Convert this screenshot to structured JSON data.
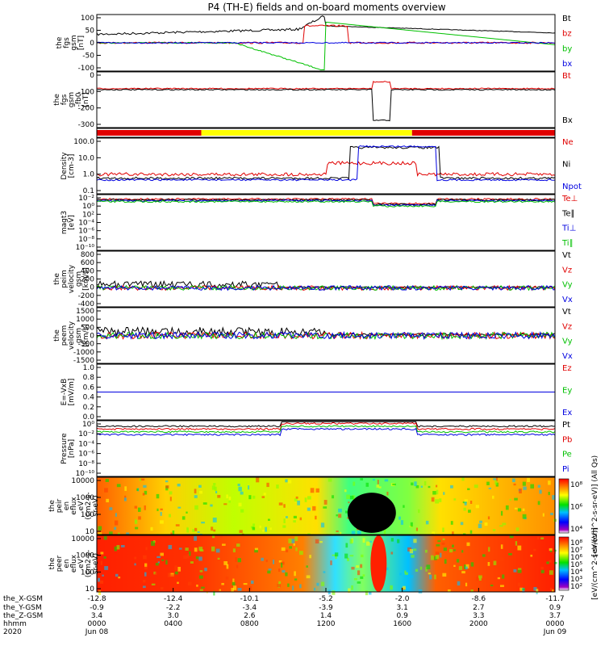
{
  "title": "P4 (TH-E) fields and on-board moments overview",
  "colors": {
    "black": "#000000",
    "red": "#e00000",
    "green": "#00c000",
    "blue": "#0000e0",
    "yellow": "#ffff00"
  },
  "chart_data": [
    {
      "id": "fgs_bfield",
      "type": "line",
      "ylabel_lines": [
        "the",
        "fgs",
        "gsm",
        "[nT]"
      ],
      "yticks": [
        "100",
        "50",
        "0",
        "-50",
        "-100"
      ],
      "ylim": [
        -100,
        100
      ],
      "series": [
        {
          "name": "Bt",
          "color": "black"
        },
        {
          "name": "bz",
          "color": "red"
        },
        {
          "name": "by",
          "color": "green"
        },
        {
          "name": "bx",
          "color": "blue"
        }
      ]
    },
    {
      "id": "fgs_btotal",
      "type": "line",
      "ylabel_lines": [
        "the",
        "fgs",
        "gsm",
        "-fb0",
        "[nT]"
      ],
      "yticks": [
        "0",
        "-100",
        "-200",
        "-300"
      ],
      "ylim": [
        -330,
        30
      ],
      "series": [
        {
          "name": "Bt",
          "color": "red"
        },
        {
          "name": "Bx",
          "color": "black"
        }
      ]
    },
    {
      "id": "mode_bar",
      "type": "table",
      "ylabel_lines": [],
      "yticks": [],
      "segments": [
        {
          "from": 0,
          "to": 0.228,
          "color": "red"
        },
        {
          "from": 0.228,
          "to": 0.688,
          "color": "yellow"
        },
        {
          "from": 0.688,
          "to": 1,
          "color": "red"
        }
      ]
    },
    {
      "id": "density",
      "type": "line",
      "ylabel_lines": [
        "Density",
        "[cm-3]"
      ],
      "log": true,
      "yticks": [
        "100.0",
        "10.0",
        "1.0",
        "0.1"
      ],
      "series": [
        {
          "name": "Ne",
          "color": "red"
        },
        {
          "name": "Ni",
          "color": "black"
        },
        {
          "name": "Npot",
          "color": "blue"
        }
      ]
    },
    {
      "id": "temperature",
      "type": "line",
      "ylabel_lines": [
        "magt3",
        "[eV]"
      ],
      "log": true,
      "yticks": [
        "10⁻²",
        "10⁰",
        "10²",
        "10⁻⁴",
        "10⁻⁶",
        "10⁻⁸",
        "10⁻¹⁰"
      ],
      "series": [
        {
          "name": "Te⊥",
          "color": "red"
        },
        {
          "name": "Te∥",
          "color": "black"
        },
        {
          "name": "Ti⊥",
          "color": "blue"
        },
        {
          "name": "Ti∥",
          "color": "green"
        }
      ]
    },
    {
      "id": "peim_velocity",
      "type": "line",
      "ylabel_lines": [
        "the",
        "peim",
        "velocity",
        "gsm",
        "[km/s]"
      ],
      "yticks": [
        "800",
        "600",
        "400",
        "200",
        "0",
        "-200",
        "-400"
      ],
      "ylim": [
        -400,
        800
      ],
      "series": [
        {
          "name": "Vt",
          "color": "black"
        },
        {
          "name": "Vz",
          "color": "red"
        },
        {
          "name": "Vy",
          "color": "green"
        },
        {
          "name": "Vx",
          "color": "blue"
        }
      ]
    },
    {
      "id": "peem_velocity",
      "type": "line",
      "ylabel_lines": [
        "the",
        "peem",
        "velocity",
        "gsm",
        "[km/s]"
      ],
      "yticks": [
        "1500",
        "1000",
        "500",
        "0",
        "-500",
        "-1000",
        "-1500"
      ],
      "ylim": [
        -1500,
        1500
      ],
      "series": [
        {
          "name": "Vt",
          "color": "black"
        },
        {
          "name": "Vz",
          "color": "red"
        },
        {
          "name": "Vy",
          "color": "green"
        },
        {
          "name": "Vx",
          "color": "blue"
        }
      ]
    },
    {
      "id": "efield",
      "type": "line",
      "ylabel_lines": [
        "E=-VxB",
        "[mV/m]"
      ],
      "yticks": [
        "1.0",
        "0.8",
        "0.6",
        "0.4",
        "0.2",
        "0.0"
      ],
      "ylim": [
        0,
        1
      ],
      "series": [
        {
          "name": "Ez",
          "color": "red"
        },
        {
          "name": "Ey",
          "color": "green"
        },
        {
          "name": "Ex",
          "color": "blue"
        }
      ]
    },
    {
      "id": "pressure",
      "type": "line",
      "ylabel_lines": [
        "Pressure",
        "[nPa]"
      ],
      "log": true,
      "yticks": [
        "10⁰",
        "10⁻²",
        "10⁻⁴",
        "10⁻⁶",
        "10⁻⁸",
        "10⁻¹⁰"
      ],
      "series": [
        {
          "name": "Pt",
          "color": "black"
        },
        {
          "name": "Pb",
          "color": "red"
        },
        {
          "name": "Pe",
          "color": "green"
        },
        {
          "name": "Pi",
          "color": "blue"
        }
      ]
    },
    {
      "id": "peir_spectrogram",
      "type": "heatmap",
      "ylabel_lines": [
        "the",
        "peir",
        "en",
        "eflux",
        "eV",
        "(cm2-s-",
        "sr-eV)"
      ],
      "yticks": [
        "10000",
        "1000",
        "100",
        "10"
      ],
      "colorbar_ticks": [
        "10⁸",
        "10⁶",
        "10⁴"
      ],
      "colorbar_label": "[eV/(cm^2-s-sr-eV)] (All Qs)"
    },
    {
      "id": "peer_spectrogram",
      "type": "heatmap",
      "ylabel_lines": [
        "the",
        "peer",
        "en",
        "eflux",
        "eV",
        "(cm2-s-",
        "sr-eV)"
      ],
      "yticks": [
        "10000",
        "1000",
        "100",
        "10"
      ],
      "colorbar_ticks": [
        "10⁸",
        "10⁷",
        "10⁶",
        "10⁵",
        "10⁴",
        "10³",
        "10²"
      ],
      "colorbar_label": "[eV/(cm^2-s-sr-eV)]"
    }
  ],
  "x_axis": {
    "row_labels": [
      "the_X-GSM",
      "the_Y-GSM",
      "the_Z-GSM",
      "hhmm",
      "2020"
    ],
    "ticks": [
      {
        "x": "-12.8",
        "y": "-0.9",
        "z": "3.4",
        "hhmm": "0000",
        "date": "Jun 08"
      },
      {
        "x": "-12.4",
        "y": "-2.2",
        "z": "3.0",
        "hhmm": "0400",
        "date": ""
      },
      {
        "x": "-10.1",
        "y": "-3.4",
        "z": "2.6",
        "hhmm": "0800",
        "date": ""
      },
      {
        "x": "-5.2",
        "y": "-3.9",
        "z": "1.4",
        "hhmm": "1200",
        "date": ""
      },
      {
        "x": "-2.0",
        "y": "3.1",
        "z": "0.9",
        "hhmm": "1600",
        "date": ""
      },
      {
        "x": "-8.6",
        "y": "2.7",
        "z": "3.3",
        "hhmm": "2000",
        "date": ""
      },
      {
        "x": "-11.7",
        "y": "0.9",
        "z": "3.7",
        "hhmm": "0000",
        "date": "Jun 09"
      }
    ]
  }
}
